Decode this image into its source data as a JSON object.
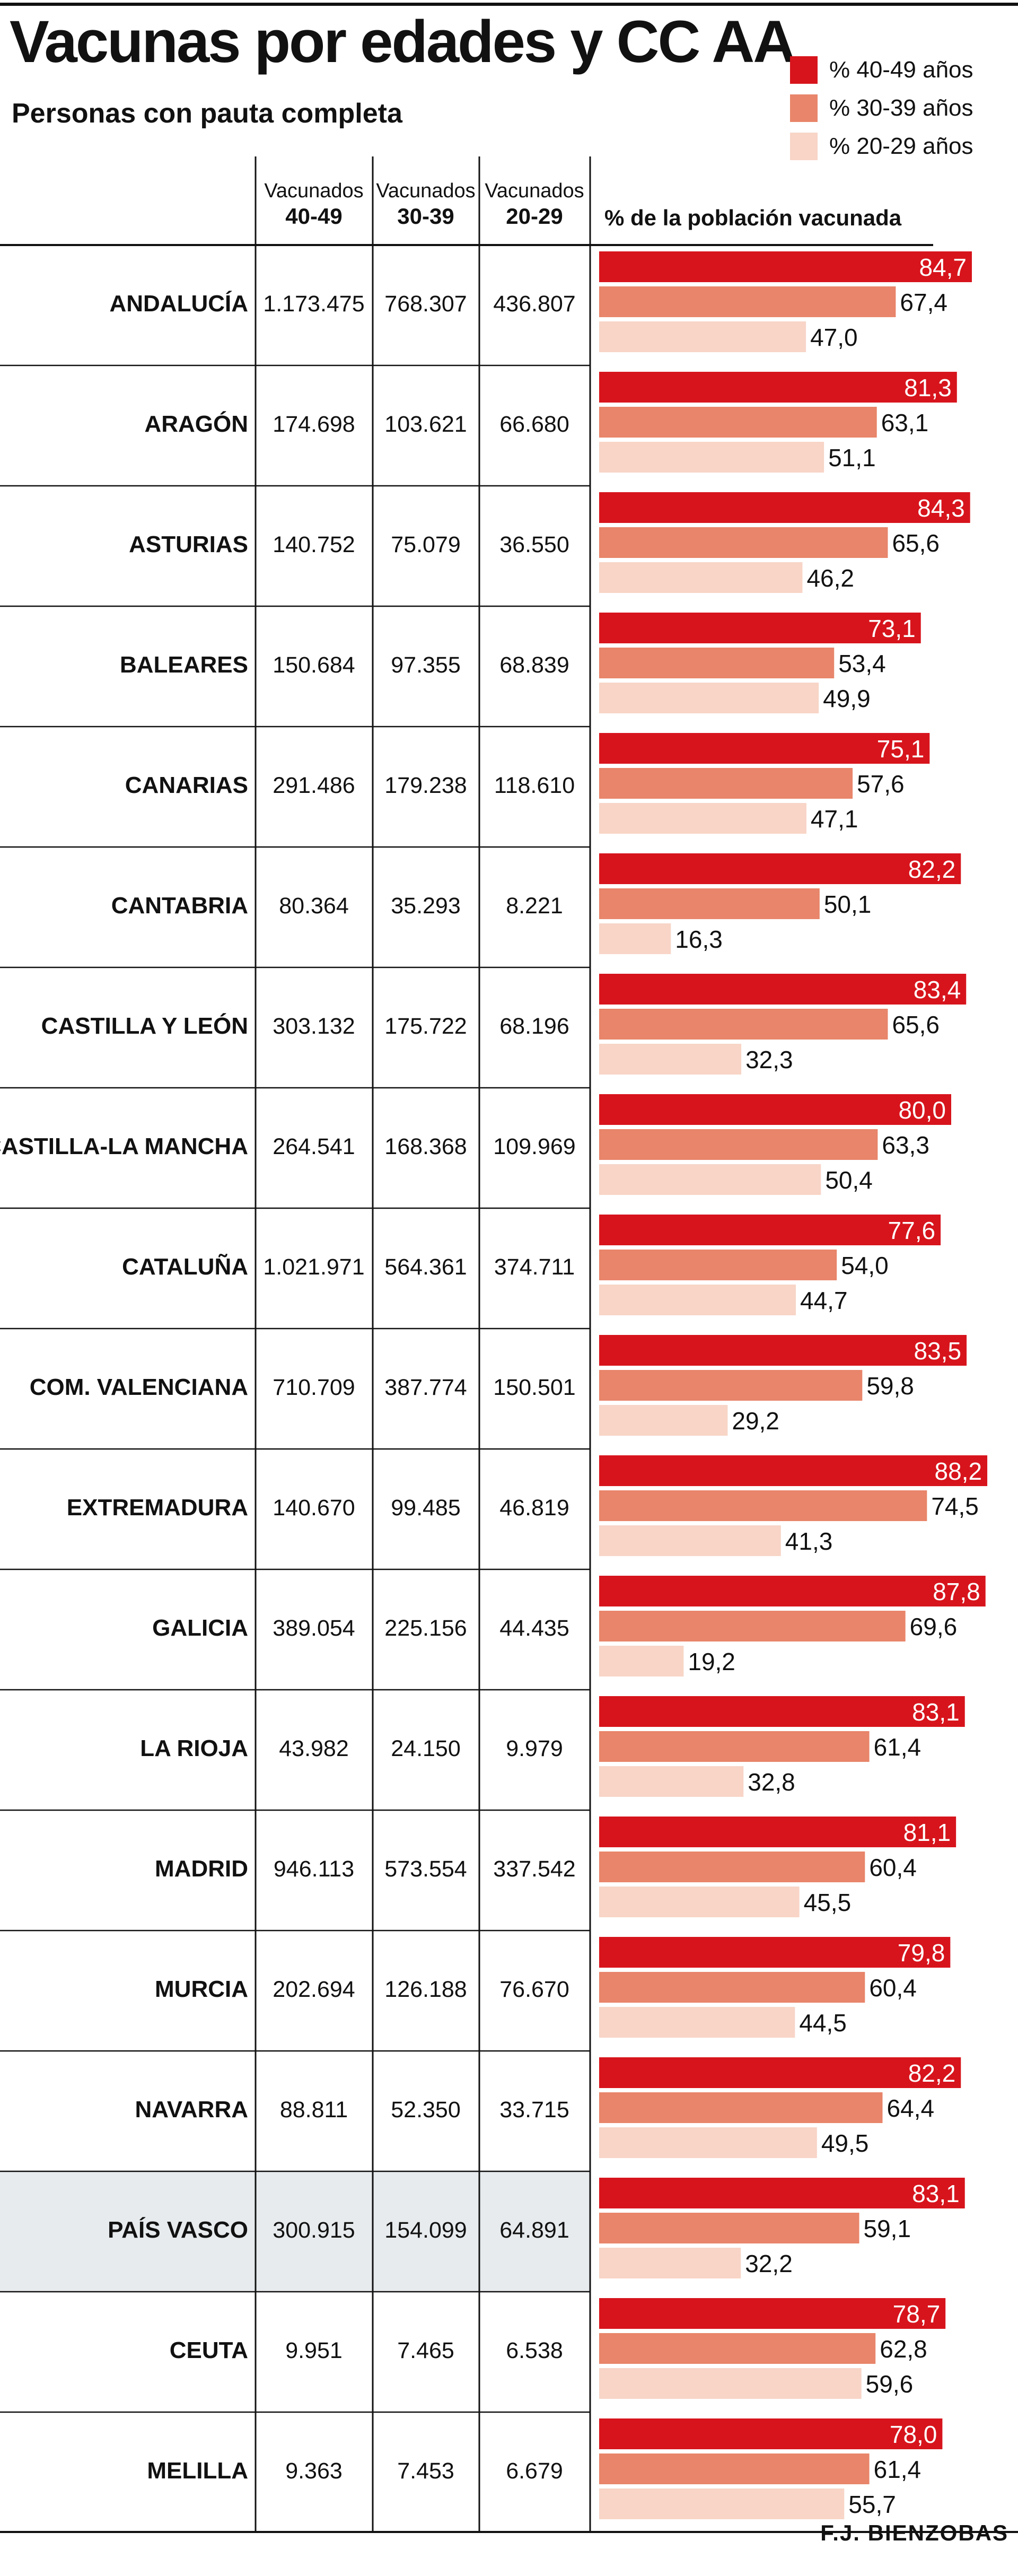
{
  "header": {
    "title": "Vacunas por edades y CC AA",
    "subtitle": "Personas con pauta completa"
  },
  "legend": [
    {
      "label": "% 40-49 años",
      "color": "#d7141c"
    },
    {
      "label": "% 30-39 años",
      "color": "#e8856a"
    },
    {
      "label": "% 20-29 años",
      "color": "#f8d5c7"
    }
  ],
  "credit": "F.J. BIENZOBAS",
  "chart_data": {
    "type": "bar",
    "orientation": "horizontal",
    "title": "Vacunas por edades y CC AA",
    "subtitle": "Personas con pauta completa",
    "xlabel": "% de la población vacunada",
    "xlim": [
      0,
      100
    ],
    "grid": false,
    "legend_position": "top-right",
    "highlighted_category": "PAÍS VASCO",
    "table_headers": [
      {
        "line1": "Vacunados",
        "line2": "40-49"
      },
      {
        "line1": "Vacunados",
        "line2": "30-39"
      },
      {
        "line1": "Vacunados",
        "line2": "20-29"
      }
    ],
    "categories": [
      "ANDALUCÍA",
      "ARAGÓN",
      "ASTURIAS",
      "BALEARES",
      "CANARIAS",
      "CANTABRIA",
      "CASTILLA Y LEÓN",
      "CASTILLA-LA MANCHA",
      "CATALUÑA",
      "COM. VALENCIANA",
      "EXTREMADURA",
      "GALICIA",
      "LA RIOJA",
      "MADRID",
      "MURCIA",
      "NAVARRA",
      "PAÍS VASCO",
      "CEUTA",
      "MELILLA"
    ],
    "vaccinated": [
      [
        "1.173.475",
        "768.307",
        "436.807"
      ],
      [
        "174.698",
        "103.621",
        "66.680"
      ],
      [
        "140.752",
        "75.079",
        "36.550"
      ],
      [
        "150.684",
        "97.355",
        "68.839"
      ],
      [
        "291.486",
        "179.238",
        "118.610"
      ],
      [
        "80.364",
        "35.293",
        "8.221"
      ],
      [
        "303.132",
        "175.722",
        "68.196"
      ],
      [
        "264.541",
        "168.368",
        "109.969"
      ],
      [
        "1.021.971",
        "564.361",
        "374.711"
      ],
      [
        "710.709",
        "387.774",
        "150.501"
      ],
      [
        "140.670",
        "99.485",
        "46.819"
      ],
      [
        "389.054",
        "225.156",
        "44.435"
      ],
      [
        "43.982",
        "24.150",
        "9.979"
      ],
      [
        "946.113",
        "573.554",
        "337.542"
      ],
      [
        "202.694",
        "126.188",
        "76.670"
      ],
      [
        "88.811",
        "52.350",
        "33.715"
      ],
      [
        "300.915",
        "154.099",
        "64.891"
      ],
      [
        "9.951",
        "7.465",
        "6.538"
      ],
      [
        "9.363",
        "7.453",
        "6.679"
      ]
    ],
    "series": [
      {
        "name": "% 40-49 años",
        "color": "#d7141c",
        "values": [
          84.7,
          81.3,
          84.3,
          73.1,
          75.1,
          82.2,
          83.4,
          80.0,
          77.6,
          83.5,
          88.2,
          87.8,
          83.1,
          81.1,
          79.8,
          82.2,
          83.1,
          78.7,
          78.0
        ],
        "labels": [
          "84,7",
          "81,3",
          "84,3",
          "73,1",
          "75,1",
          "82,2",
          "83,4",
          "80,0",
          "77,6",
          "83,5",
          "88,2",
          "87,8",
          "83,1",
          "81,1",
          "79,8",
          "82,2",
          "83,1",
          "78,7",
          "78,0"
        ]
      },
      {
        "name": "% 30-39 años",
        "color": "#e8856a",
        "values": [
          67.4,
          63.1,
          65.6,
          53.4,
          57.6,
          50.1,
          65.6,
          63.3,
          54.0,
          59.8,
          74.5,
          69.6,
          61.4,
          60.4,
          60.4,
          64.4,
          59.1,
          62.8,
          61.4
        ],
        "labels": [
          "67,4",
          "63,1",
          "65,6",
          "53,4",
          "57,6",
          "50,1",
          "65,6",
          "63,3",
          "54,0",
          "59,8",
          "74,5",
          "69,6",
          "61,4",
          "60,4",
          "60,4",
          "64,4",
          "59,1",
          "62,8",
          "61,4"
        ]
      },
      {
        "name": "% 20-29 años",
        "color": "#f8d5c7",
        "values": [
          47.0,
          51.1,
          46.2,
          49.9,
          47.1,
          16.3,
          32.3,
          50.4,
          44.7,
          29.2,
          41.3,
          19.2,
          32.8,
          45.5,
          44.5,
          49.5,
          32.2,
          59.6,
          55.7
        ],
        "labels": [
          "47,0",
          "51,1",
          "46,2",
          "49,9",
          "47,1",
          "16,3",
          "32,3",
          "50,4",
          "44,7",
          "29,2",
          "41,3",
          "19,2",
          "32,8",
          "45,5",
          "44,5",
          "49,5",
          "32,2",
          "59,6",
          "55,7"
        ]
      }
    ]
  }
}
